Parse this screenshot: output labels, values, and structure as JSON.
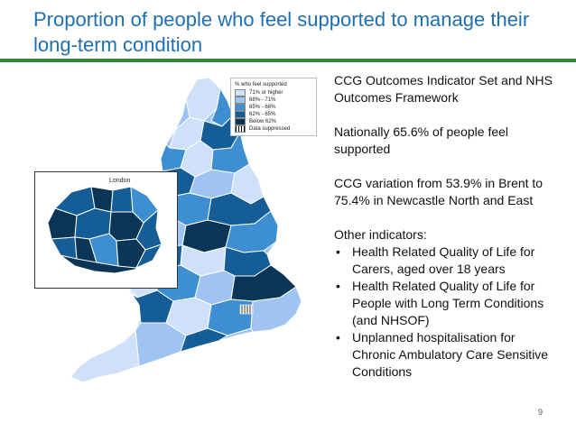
{
  "slide": {
    "title": "Proportion of people who feel supported to manage their long-term condition",
    "page_number": "9"
  },
  "map": {
    "legend_title": "% who feel supported",
    "legend": [
      {
        "label": "71% or higher",
        "color": "#cfe0fa"
      },
      {
        "label": "68% - 71%",
        "color": "#9fc3f2"
      },
      {
        "label": "65% - 68%",
        "color": "#3d8fd1"
      },
      {
        "label": "62% - 65%",
        "color": "#155d96"
      },
      {
        "label": "Below 62%",
        "color": "#0b3556"
      },
      {
        "label": "Data suppressed",
        "color": "hatch"
      }
    ],
    "inset_label": "London"
  },
  "panel": {
    "para1": "CCG Outcomes Indicator Set and NHS Outcomes Framework",
    "para2": "Nationally 65.6% of people feel supported",
    "para3": "CCG variation from 53.9% in Brent to 75.4% in Newcastle North and East",
    "para4": "Other indicators:",
    "bullets": [
      "Health Related Quality of Life for Carers, aged over 18 years",
      "Health Related Quality of Life for People with Long Term Conditions (and NHSOF)",
      "Unplanned hospitalisation for Chronic Ambulatory Care Sensitive Conditions"
    ]
  }
}
